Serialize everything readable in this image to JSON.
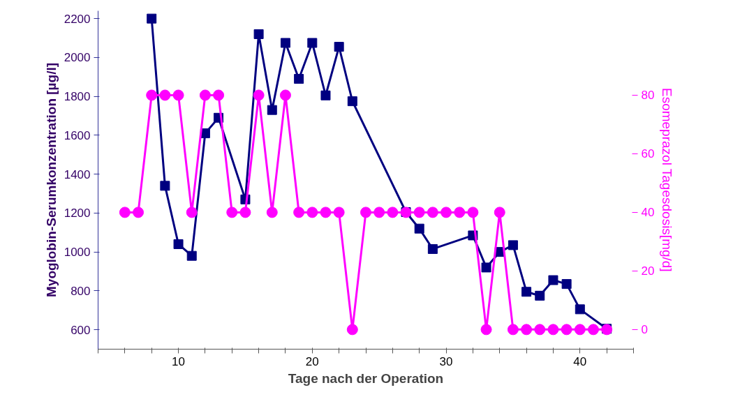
{
  "chart_data": {
    "type": "line",
    "xlabel": "Tage nach der Operation",
    "ylabel": "Myoglobin-Serumkonzentration [µg/l]",
    "y2label": "Esomeprazol Tagesdosis[mg/d]",
    "xlim": [
      4,
      44
    ],
    "xticks": [
      {
        "value": 4,
        "label": null
      },
      {
        "value": 6,
        "label": null
      },
      {
        "value": 8,
        "label": null
      },
      10,
      {
        "value": 12,
        "label": null
      },
      {
        "value": 14,
        "label": null
      },
      {
        "value": 16,
        "label": null
      },
      {
        "value": 18,
        "label": null
      },
      20,
      {
        "value": 22,
        "label": null
      },
      {
        "value": 24,
        "label": null
      },
      {
        "value": 26,
        "label": null
      },
      {
        "value": 28,
        "label": null
      },
      30,
      {
        "value": 32,
        "label": null
      },
      {
        "value": 34,
        "label": null
      },
      {
        "value": 36,
        "label": null
      },
      {
        "value": 38,
        "label": null
      },
      40,
      {
        "value": 42,
        "label": null
      },
      {
        "value": 44,
        "label": null
      }
    ],
    "ylim": [
      500,
      2240
    ],
    "yticks": [
      600,
      800,
      1000,
      1200,
      1400,
      1600,
      1800,
      2000,
      2200
    ],
    "y2lim": [
      -6.7,
      108.8
    ],
    "y2ticks": [
      0,
      20,
      40,
      60,
      80
    ],
    "grid": false,
    "series": [
      {
        "color": "#000080",
        "marker": "square",
        "x": [
          8,
          9,
          10,
          11,
          12,
          13,
          15,
          16,
          17,
          18,
          19,
          20,
          21,
          22,
          23,
          27,
          28,
          29,
          32,
          33,
          34,
          35,
          36,
          37,
          38,
          39,
          40,
          42
        ],
        "values": [
          2200,
          1340,
          1040,
          980,
          1610,
          1690,
          1270,
          2120,
          1730,
          2075,
          1890,
          2075,
          1805,
          2055,
          1775,
          1205,
          1120,
          1015,
          1085,
          920,
          1000,
          1035,
          795,
          775,
          855,
          835,
          705,
          605
        ]
      },
      {
        "color": "#ff00ff",
        "marker": "circle",
        "axis": "y2",
        "x": [
          6,
          7,
          8,
          9,
          10,
          11,
          12,
          13,
          14,
          15,
          16,
          17,
          18,
          19,
          20,
          21,
          22,
          23,
          24,
          25,
          26,
          27,
          28,
          29,
          30,
          31,
          32,
          33,
          34,
          35,
          36,
          37,
          38,
          39,
          40,
          41,
          42
        ],
        "values": [
          40,
          40,
          80,
          80,
          80,
          40,
          80,
          80,
          40,
          40,
          80,
          40,
          80,
          40,
          40,
          40,
          40,
          0,
          40,
          40,
          40,
          40,
          40,
          40,
          40,
          40,
          40,
          0,
          40,
          0,
          0,
          0,
          0,
          0,
          0,
          0,
          0
        ]
      }
    ]
  }
}
